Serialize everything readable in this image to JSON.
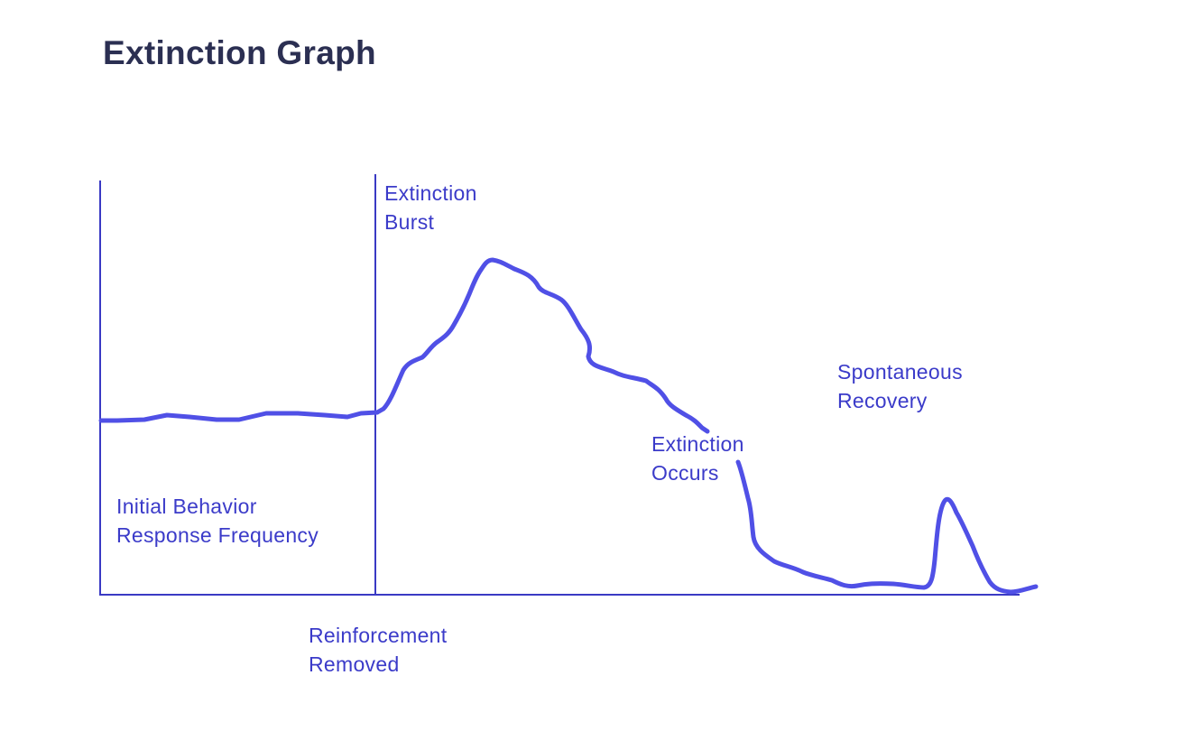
{
  "title": "Extinction Graph",
  "annotations": {
    "extinction_burst": [
      "Extinction",
      "Burst"
    ],
    "initial_behavior": [
      "Initial Behavior",
      "Response Frequency"
    ],
    "reinforcement_removed": [
      "Reinforcement",
      "Removed"
    ],
    "extinction_occurs": [
      "Extinction",
      "Occurs"
    ],
    "spontaneous_recovery": [
      "Spontaneous",
      "Recovery"
    ]
  },
  "colors": {
    "axis": "#3a3ac4",
    "curve": "#5050e6",
    "text": "#3b3bc9",
    "title": "#2b2f52"
  }
}
